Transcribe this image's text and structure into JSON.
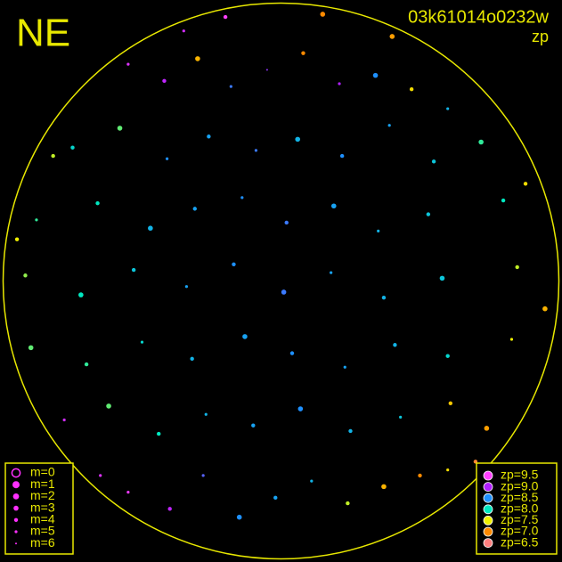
{
  "chart_data": {
    "type": "scatter",
    "title": "NE",
    "subtitle": "03k61014o0232w",
    "color_label": "zp",
    "xlim": [
      -1,
      1
    ],
    "ylim": [
      -1,
      1
    ],
    "frame_color": "#e8e800",
    "size_legend": [
      {
        "label": "m=0",
        "m": 0
      },
      {
        "label": "m=1",
        "m": 1
      },
      {
        "label": "m=2",
        "m": 2
      },
      {
        "label": "m=3",
        "m": 3
      },
      {
        "label": "m=4",
        "m": 4
      },
      {
        "label": "m=5",
        "m": 5
      },
      {
        "label": "m=6",
        "m": 6
      }
    ],
    "size_legend_color": "#ff30ff",
    "color_legend": [
      {
        "label": "zp=9.5",
        "zp": 9.5,
        "color": "#ff40ff"
      },
      {
        "label": "zp=9.0",
        "zp": 9.0,
        "color": "#b020ff"
      },
      {
        "label": "zp=8.5",
        "zp": 8.5,
        "color": "#1e90ff"
      },
      {
        "label": "zp=8.0",
        "zp": 8.0,
        "color": "#00e8c0"
      },
      {
        "label": "zp=7.5",
        "zp": 7.5,
        "color": "#f0f000"
      },
      {
        "label": "zp=7.0",
        "zp": 7.0,
        "color": "#ff8a00"
      },
      {
        "label": "zp=6.5",
        "zp": 6.5,
        "color": "#ff8080"
      }
    ],
    "x": [
      -0.55,
      -0.42,
      -0.3,
      -0.18,
      -0.05,
      0.08,
      0.21,
      0.34,
      0.47,
      0.6,
      -0.75,
      -0.58,
      -0.41,
      -0.26,
      -0.09,
      0.06,
      0.22,
      0.39,
      0.55,
      0.72,
      -0.88,
      -0.66,
      -0.47,
      -0.31,
      -0.14,
      0.02,
      0.19,
      0.35,
      0.53,
      0.8,
      -0.92,
      -0.72,
      -0.53,
      -0.34,
      -0.17,
      0.01,
      0.18,
      0.37,
      0.58,
      0.85,
      -0.9,
      -0.7,
      -0.5,
      -0.32,
      -0.13,
      0.04,
      0.23,
      0.41,
      0.6,
      0.83,
      -0.78,
      -0.62,
      -0.44,
      -0.27,
      -0.1,
      0.07,
      0.25,
      0.43,
      0.61,
      0.74,
      -0.55,
      -0.4,
      -0.28,
      -0.15,
      -0.02,
      0.11,
      0.24,
      0.37,
      0.5,
      0.6,
      -0.2,
      0.15,
      -0.95,
      0.95,
      -0.65,
      0.7,
      -0.35,
      0.4,
      -0.82,
      0.88
    ],
    "y": [
      0.78,
      0.72,
      0.8,
      0.7,
      0.76,
      0.82,
      0.71,
      0.74,
      0.69,
      0.62,
      0.48,
      0.55,
      0.44,
      0.52,
      0.47,
      0.51,
      0.45,
      0.56,
      0.43,
      0.5,
      0.22,
      0.28,
      0.19,
      0.26,
      0.3,
      0.21,
      0.27,
      0.18,
      0.24,
      0.29,
      0.02,
      -0.05,
      0.04,
      -0.02,
      0.06,
      -0.04,
      0.03,
      -0.06,
      0.01,
      0.05,
      -0.24,
      -0.3,
      -0.22,
      -0.28,
      -0.2,
      -0.26,
      -0.31,
      -0.23,
      -0.27,
      -0.21,
      -0.5,
      -0.45,
      -0.55,
      -0.48,
      -0.52,
      -0.46,
      -0.54,
      -0.49,
      -0.44,
      -0.53,
      -0.76,
      -0.82,
      -0.7,
      -0.85,
      -0.78,
      -0.72,
      -0.8,
      -0.74,
      -0.7,
      -0.68,
      0.95,
      0.96,
      0.15,
      -0.1,
      -0.7,
      -0.65,
      0.9,
      0.88,
      0.45,
      0.35
    ],
    "m": [
      5,
      4,
      3,
      5,
      6,
      4,
      5,
      3,
      4,
      5,
      4,
      3,
      5,
      4,
      5,
      3,
      4,
      5,
      4,
      3,
      5,
      4,
      3,
      4,
      5,
      4,
      3,
      5,
      4,
      4,
      4,
      3,
      4,
      5,
      4,
      3,
      5,
      4,
      3,
      4,
      3,
      4,
      5,
      4,
      3,
      4,
      5,
      4,
      4,
      5,
      5,
      3,
      4,
      5,
      4,
      3,
      4,
      5,
      4,
      3,
      5,
      4,
      5,
      3,
      4,
      5,
      4,
      3,
      4,
      5,
      4,
      3,
      4,
      3,
      5,
      4,
      5,
      3,
      4,
      4
    ],
    "zp": [
      9.3,
      9.1,
      7.2,
      8.6,
      8.9,
      7.0,
      9.0,
      8.5,
      7.4,
      8.3,
      8.1,
      7.8,
      8.5,
      8.4,
      8.6,
      8.3,
      8.5,
      8.4,
      8.2,
      7.9,
      7.9,
      8.0,
      8.3,
      8.4,
      8.5,
      8.6,
      8.4,
      8.3,
      8.2,
      8.0,
      7.7,
      8.0,
      8.2,
      8.4,
      8.5,
      8.6,
      8.4,
      8.3,
      8.2,
      7.6,
      7.8,
      7.9,
      8.1,
      8.3,
      8.4,
      8.5,
      8.4,
      8.3,
      8.1,
      7.5,
      9.2,
      7.8,
      8.0,
      8.3,
      8.4,
      8.5,
      8.3,
      8.2,
      7.3,
      7.1,
      9.4,
      9.1,
      8.7,
      8.5,
      8.4,
      8.3,
      7.6,
      7.2,
      7.0,
      7.4,
      9.5,
      7.0,
      7.5,
      7.2,
      9.3,
      6.8,
      9.2,
      7.1,
      7.6,
      7.4
    ]
  }
}
